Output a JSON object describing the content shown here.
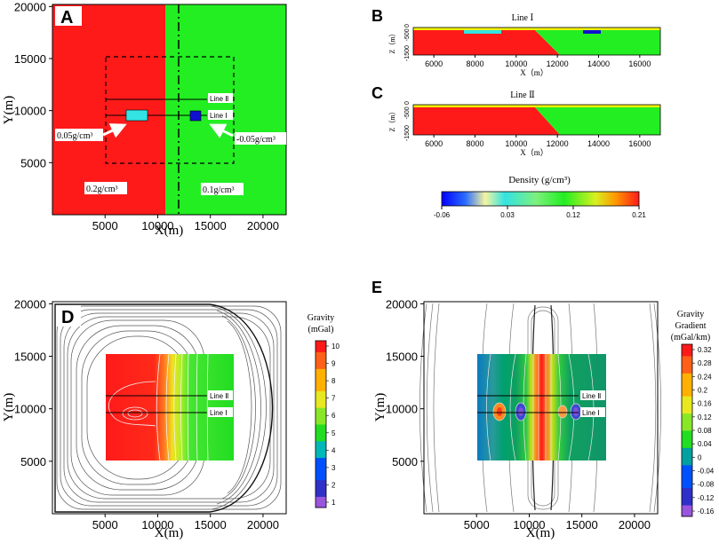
{
  "colors": {
    "red": "#ff1a1a",
    "green": "#22ee22",
    "cyan": "#33e3e3",
    "blue": "#1010d0",
    "yellow": "#f2f200",
    "axis": "#000000",
    "white": "#ffffff"
  },
  "chart_data": [
    {
      "id": "A",
      "type": "heatmap",
      "panel_label": "A",
      "xlabel": "X(m)",
      "ylabel": "Y(m)",
      "xlim": [
        0,
        22200
      ],
      "ylim": [
        0,
        20200
      ],
      "xticks": [
        5000,
        10000,
        15000,
        20000
      ],
      "yticks": [
        5000,
        10000,
        15000,
        20000
      ],
      "xtick_labels": [
        "5000",
        "10000",
        "15000",
        "20000"
      ],
      "ytick_labels": [
        "5000",
        "10000",
        "15000",
        "20000"
      ],
      "regions": [
        {
          "label": "0.2g/cm³",
          "density": 0.2,
          "x_range": [
            0,
            10800
          ],
          "color": "#ff1a1a"
        },
        {
          "label": "0.1g/cm³",
          "density": 0.1,
          "x_range": [
            10800,
            22200
          ],
          "color": "#22ee22"
        }
      ],
      "bodies": [
        {
          "label": "0.05g/cm³",
          "density": 0.05,
          "x_range": [
            7200,
            9000
          ],
          "y_range": [
            9200,
            10100
          ],
          "color": "#33e3e3"
        },
        {
          "label": "-0.05g/cm³",
          "density": -0.05,
          "x_range": [
            13100,
            14000
          ],
          "y_range": [
            9200,
            10100
          ],
          "color": "#1010d0"
        }
      ],
      "survey_window": {
        "x_range": [
          5000,
          17000
        ],
        "y_range": [
          5000,
          15000
        ]
      },
      "contact_line_x": 12000,
      "profiles": [
        {
          "name": "Line Ⅱ",
          "y": 11100,
          "x_range": [
            5000,
            17000
          ]
        },
        {
          "name": "Line Ⅰ",
          "y": 9600,
          "x_range": [
            5000,
            17000
          ]
        }
      ]
    },
    {
      "id": "B",
      "type": "heatmap",
      "panel_label": "B",
      "title": "Line Ⅰ",
      "xlabel": "X（m）",
      "ylabel": "Z（m）",
      "xlim": [
        5000,
        17000
      ],
      "ylim": [
        -1500,
        0
      ],
      "xticks": [
        6000,
        8000,
        10000,
        12000,
        14000,
        16000
      ],
      "xtick_labels": [
        "6000",
        "8000",
        "10000",
        "12000",
        "14000",
        "16000"
      ],
      "yticks": [
        0,
        -500,
        -1500
      ],
      "ytick_labels": [
        "0",
        "-500",
        "-1500"
      ],
      "interface": {
        "x_top": 10800,
        "x_bottom": 12000,
        "depth": [
          -150,
          -1500
        ]
      },
      "bodies": [
        {
          "label": "0.05g/cm³",
          "x_range": [
            7200,
            9000
          ],
          "z_range": [
            -150,
            -350
          ],
          "color": "#33e3e3"
        },
        {
          "label": "-0.05g/cm³",
          "x_range": [
            13100,
            14000
          ],
          "z_range": [
            -150,
            -350
          ],
          "color": "#1010d0"
        }
      ]
    },
    {
      "id": "C",
      "type": "heatmap",
      "panel_label": "C",
      "title": "Line Ⅱ",
      "xlabel": "X（m）",
      "ylabel": "Z（m）",
      "xlim": [
        5000,
        17000
      ],
      "ylim": [
        -1500,
        0
      ],
      "xticks": [
        6000,
        8000,
        10000,
        12000,
        14000,
        16000
      ],
      "xtick_labels": [
        "6000",
        "8000",
        "10000",
        "12000",
        "14000",
        "16000"
      ],
      "yticks": [
        0,
        -500,
        -1500
      ],
      "ytick_labels": [
        "0",
        "-500",
        "-1500"
      ],
      "interface": {
        "x_top": 10800,
        "x_bottom": 12000,
        "depth": [
          -150,
          -1500
        ]
      }
    },
    {
      "id": "density-colorbar",
      "type": "heatmap",
      "title": "Density (g/cm³)",
      "range": [
        -0.06,
        0.21
      ],
      "tick_values": [
        -0.06,
        0.03,
        0.12,
        0.21
      ],
      "tick_labels": [
        "-0.06",
        "0.03",
        "0.12",
        "0.21"
      ],
      "colormap": [
        "#0000ff",
        "#1a6fff",
        "#33e3e3",
        "#7df07d",
        "#22ee22",
        "#d8f020",
        "#ffb000",
        "#ff1a1a"
      ]
    },
    {
      "id": "D",
      "type": "heatmap",
      "panel_label": "D",
      "xlabel": "X(m)",
      "ylabel": "Y(m)",
      "xlim": [
        0,
        22200
      ],
      "ylim": [
        0,
        20200
      ],
      "xtick_labels": [
        "5000",
        "10000",
        "15000",
        "20000"
      ],
      "ytick_labels": [
        "5000",
        "10000",
        "15000",
        "20000"
      ],
      "xticks": [
        5000,
        10000,
        15000,
        20000
      ],
      "yticks": [
        5000,
        10000,
        15000,
        20000
      ],
      "colorbar": {
        "title_lines": [
          "Gravity",
          "(mGal)"
        ],
        "min": 1,
        "max": 10,
        "tick_labels": [
          "10",
          "9",
          "8",
          "7",
          "6",
          "5",
          "4",
          "3",
          "2",
          "1"
        ],
        "colormap": [
          "#9955dd",
          "#3030c8",
          "#0050ff",
          "#00b8b8",
          "#22dd22",
          "#88e828",
          "#e8e820",
          "#ffb000",
          "#ff6018",
          "#ff1a1a"
        ]
      },
      "profiles": [
        {
          "name": "Line Ⅱ",
          "y": 11100
        },
        {
          "name": "Line Ⅰ",
          "y": 9600
        }
      ]
    },
    {
      "id": "E",
      "type": "heatmap",
      "panel_label": "E",
      "xlabel": "X(m)",
      "ylabel": "Y(m)",
      "xlim": [
        0,
        22200
      ],
      "ylim": [
        0,
        20200
      ],
      "xtick_labels": [
        "5000",
        "10000",
        "15000",
        "20000"
      ],
      "ytick_labels": [
        "5000",
        "10000",
        "15000",
        "20000"
      ],
      "xticks": [
        5000,
        10000,
        15000,
        20000
      ],
      "yticks": [
        5000,
        10000,
        15000,
        20000
      ],
      "colorbar": {
        "title_lines": [
          "Gravity",
          "Gradient",
          "(mGal/km)"
        ],
        "min": -0.16,
        "max": 0.32,
        "tick_labels": [
          "0.32",
          "0.28",
          "0.24",
          "0.2",
          "0.16",
          "0.12",
          "0.08",
          "0.04",
          "0",
          "-0.04",
          "-0.08",
          "-0.12",
          "-0.16"
        ],
        "colormap": [
          "#9955dd",
          "#3030c8",
          "#0050ff",
          "#00a0a0",
          "#22dd22",
          "#88e828",
          "#e8e820",
          "#ffb000",
          "#ff6018",
          "#ff1a1a"
        ]
      },
      "profiles": [
        {
          "name": "Line Ⅱ",
          "y": 11100
        },
        {
          "name": "Line Ⅰ",
          "y": 9600
        }
      ]
    }
  ]
}
